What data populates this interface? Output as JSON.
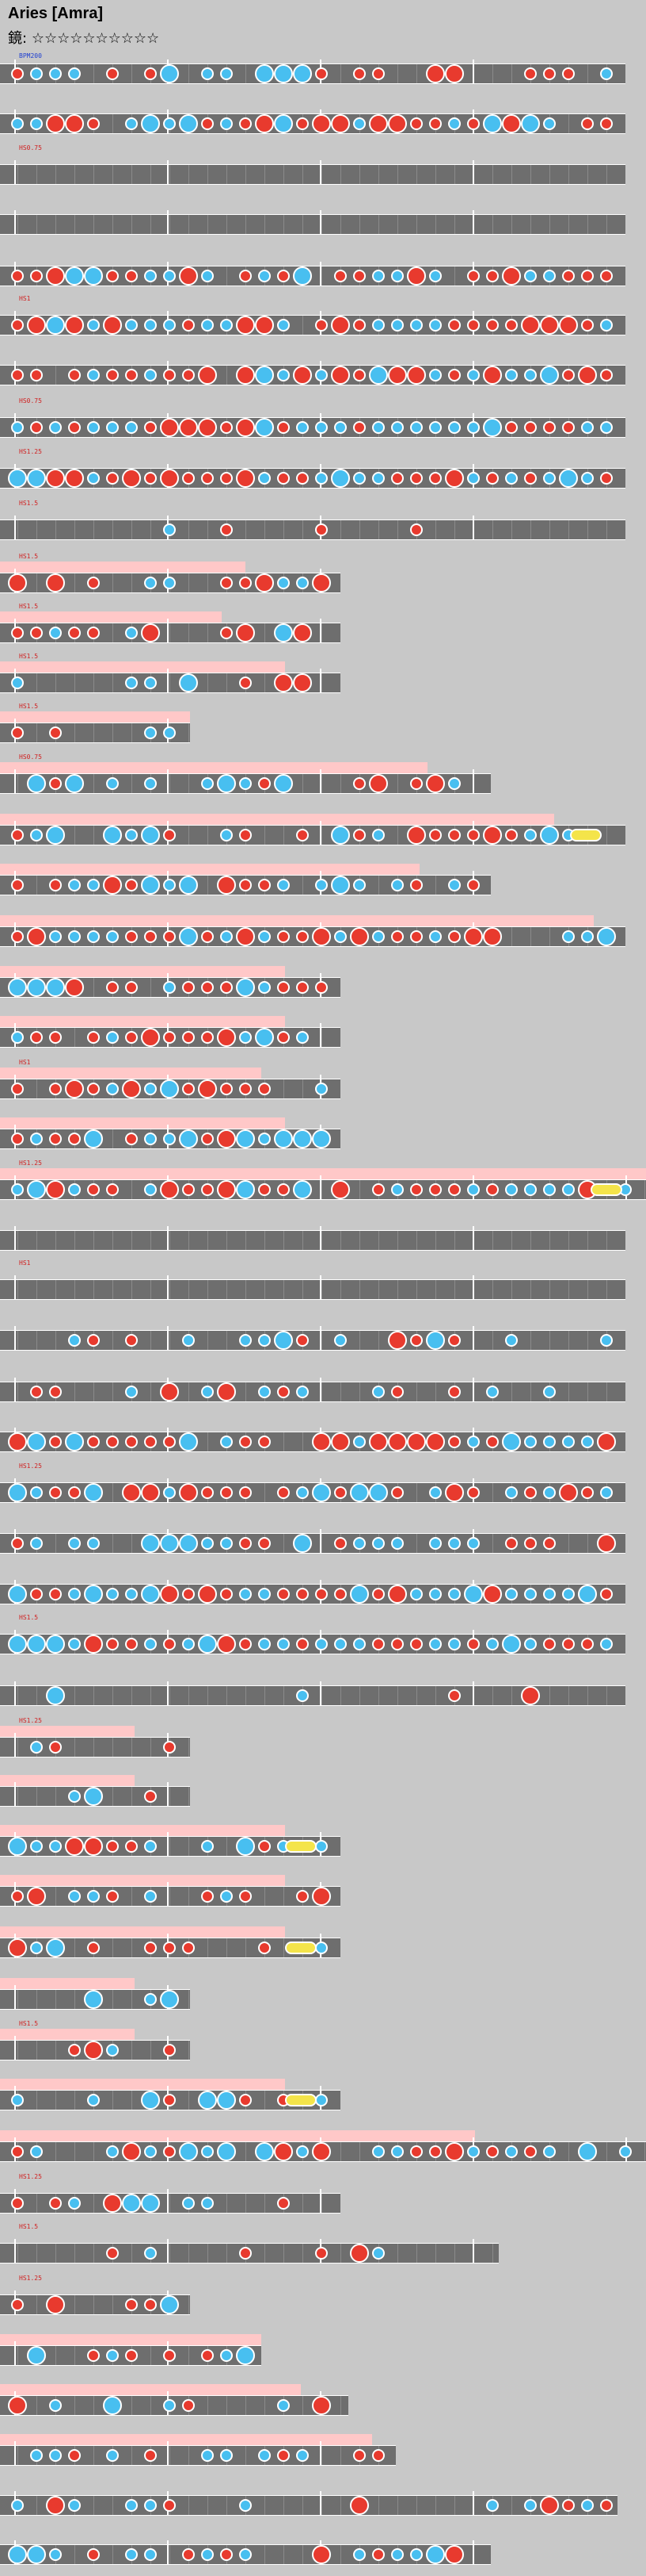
{
  "title": "Aries [Amra]",
  "level_label": "鏡:",
  "stars": "☆☆☆☆☆☆☆☆☆☆",
  "bpm_tag": "BPM200",
  "colors": {
    "don": "#e83a2e",
    "ka": "#48bff0",
    "roll": "#f4e44a",
    "lane": "#6e6e6e",
    "gogo": "#ffc8c8",
    "background": "#c8c8c8"
  },
  "tags": [
    "HS0.75",
    "HS1",
    "HS0.75",
    "HS1.25",
    "HS1.5",
    "HS1.5",
    "HS1.5",
    "HS1.5",
    "HS1.5",
    "HS0.75",
    "HS1",
    "HS1.25",
    "HS1",
    "HS1.25",
    "HS1.5",
    "HS1.25",
    "HS1.5",
    "HS1.25",
    "HS1.5",
    "HS1.25"
  ]
}
